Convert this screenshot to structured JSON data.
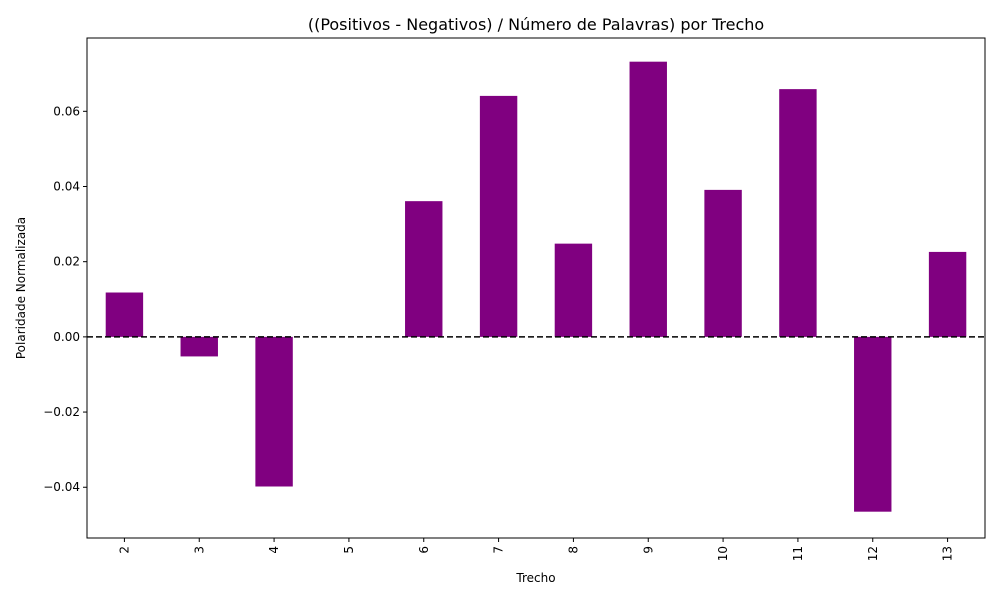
{
  "chart_data": {
    "type": "bar",
    "title": "((Positivos - Negativos) / Número de Palavras) por Trecho",
    "xlabel": "Trecho",
    "ylabel": "Polaridade Normalizada",
    "categories": [
      "2",
      "3",
      "4",
      "5",
      "6",
      "7",
      "8",
      "9",
      "10",
      "11",
      "12",
      "13"
    ],
    "values": [
      0.0118,
      -0.0052,
      -0.0398,
      0.0,
      0.0361,
      0.0641,
      0.0248,
      0.0732,
      0.0391,
      0.0659,
      -0.0465,
      0.0226
    ],
    "ylim": [
      -0.0535,
      0.0795
    ],
    "yticks": [
      -0.04,
      -0.02,
      0.0,
      0.02,
      0.04,
      0.06
    ],
    "ytick_labels": [
      "−0.04",
      "−0.02",
      "0.00",
      "0.02",
      "0.04",
      "0.06"
    ],
    "bar_color": "#800080",
    "reference_line": {
      "y": 0.0,
      "style": "dashed",
      "color": "#000000"
    },
    "grid": false,
    "legend": "none"
  }
}
